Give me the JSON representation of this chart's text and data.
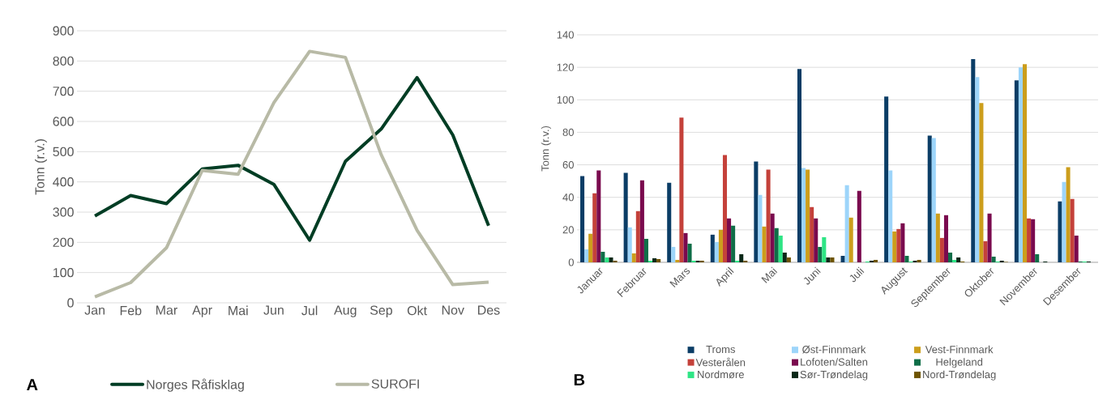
{
  "chart_data": [
    {
      "type": "line",
      "ylabel": "Tonn (r.v.)",
      "categories": [
        "Jan",
        "Feb",
        "Mar",
        "Apr",
        "Mai",
        "Jun",
        "Jul",
        "Aug",
        "Sep",
        "Okt",
        "Nov",
        "Des"
      ],
      "series": [
        {
          "name": "Norges Råfisklag",
          "color": "#003d24",
          "values": [
            287,
            355,
            328,
            443,
            455,
            392,
            207,
            468,
            575,
            745,
            555,
            255
          ]
        },
        {
          "name": "SUROFI",
          "color": "#b8baa6",
          "values": [
            20,
            67,
            182,
            438,
            425,
            662,
            832,
            812,
            490,
            240,
            60,
            68
          ]
        }
      ],
      "ylim": [
        0,
        900
      ],
      "yticks": [
        0,
        100,
        200,
        300,
        400,
        500,
        600,
        700,
        800,
        900
      ],
      "grid": "y",
      "legend": "bottom",
      "annotations": [
        "A"
      ]
    },
    {
      "type": "bar",
      "ylabel": "Tonn (r.v.)",
      "categories": [
        "Januar",
        "Februar",
        "Mars",
        "April",
        "Mai",
        "Juni",
        "Juli",
        "August",
        "September",
        "Oktober",
        "November",
        "Desember"
      ],
      "series": [
        {
          "name": "Troms",
          "color": "#0b3d66",
          "values": [
            53,
            55,
            49,
            17,
            62,
            119,
            4,
            102,
            78,
            125,
            112,
            37.5
          ]
        },
        {
          "name": "Øst-Finnmark",
          "color": "#9dd5fa",
          "values": [
            8,
            21.5,
            9.5,
            12.5,
            41.5,
            58,
            47.5,
            56.5,
            76.5,
            114,
            120,
            49.5
          ]
        },
        {
          "name": "Vest-Finnmark",
          "color": "#cc9e1c",
          "values": [
            17.5,
            5.5,
            1.5,
            20,
            22,
            57,
            27.5,
            19,
            30,
            98,
            122,
            58.5
          ]
        },
        {
          "name": "Vesterålen",
          "color": "#c4413a",
          "values": [
            42.5,
            31.5,
            89,
            66,
            57,
            34,
            0,
            20.5,
            15,
            13,
            27,
            39
          ]
        },
        {
          "name": "Lofoten/Salten",
          "color": "#7a0a4e",
          "values": [
            56.5,
            50.5,
            18,
            27,
            30,
            27,
            44,
            24,
            29,
            30,
            26.5,
            16.5
          ]
        },
        {
          "name": "Helgeland",
          "color": "#0f6e48",
          "values": [
            6.5,
            14.5,
            11.5,
            22.5,
            21,
            9.5,
            0,
            4,
            6,
            3.5,
            5,
            0.5
          ]
        },
        {
          "name": "Nordmøre",
          "color": "#2ee585",
          "values": [
            3,
            1,
            1,
            1,
            16.5,
            15.5,
            0.5,
            0.5,
            1.5,
            0.5,
            0,
            0.5
          ]
        },
        {
          "name": "Sør-Trøndelag",
          "color": "#0a2818",
          "values": [
            3,
            2.5,
            1,
            5,
            6,
            3,
            1,
            1,
            3,
            1,
            0.5,
            0.5
          ]
        },
        {
          "name": "Nord-Trøndelag",
          "color": "#6e5400",
          "values": [
            1,
            2,
            1,
            1,
            3,
            3,
            1.5,
            1.5,
            0.5,
            0.3,
            0,
            0
          ]
        }
      ],
      "ylim": [
        0,
        140
      ],
      "yticks": [
        0,
        20,
        40,
        60,
        80,
        100,
        120,
        140
      ],
      "grid": "y",
      "legend": "bottom",
      "annotations": [
        "B"
      ]
    }
  ]
}
